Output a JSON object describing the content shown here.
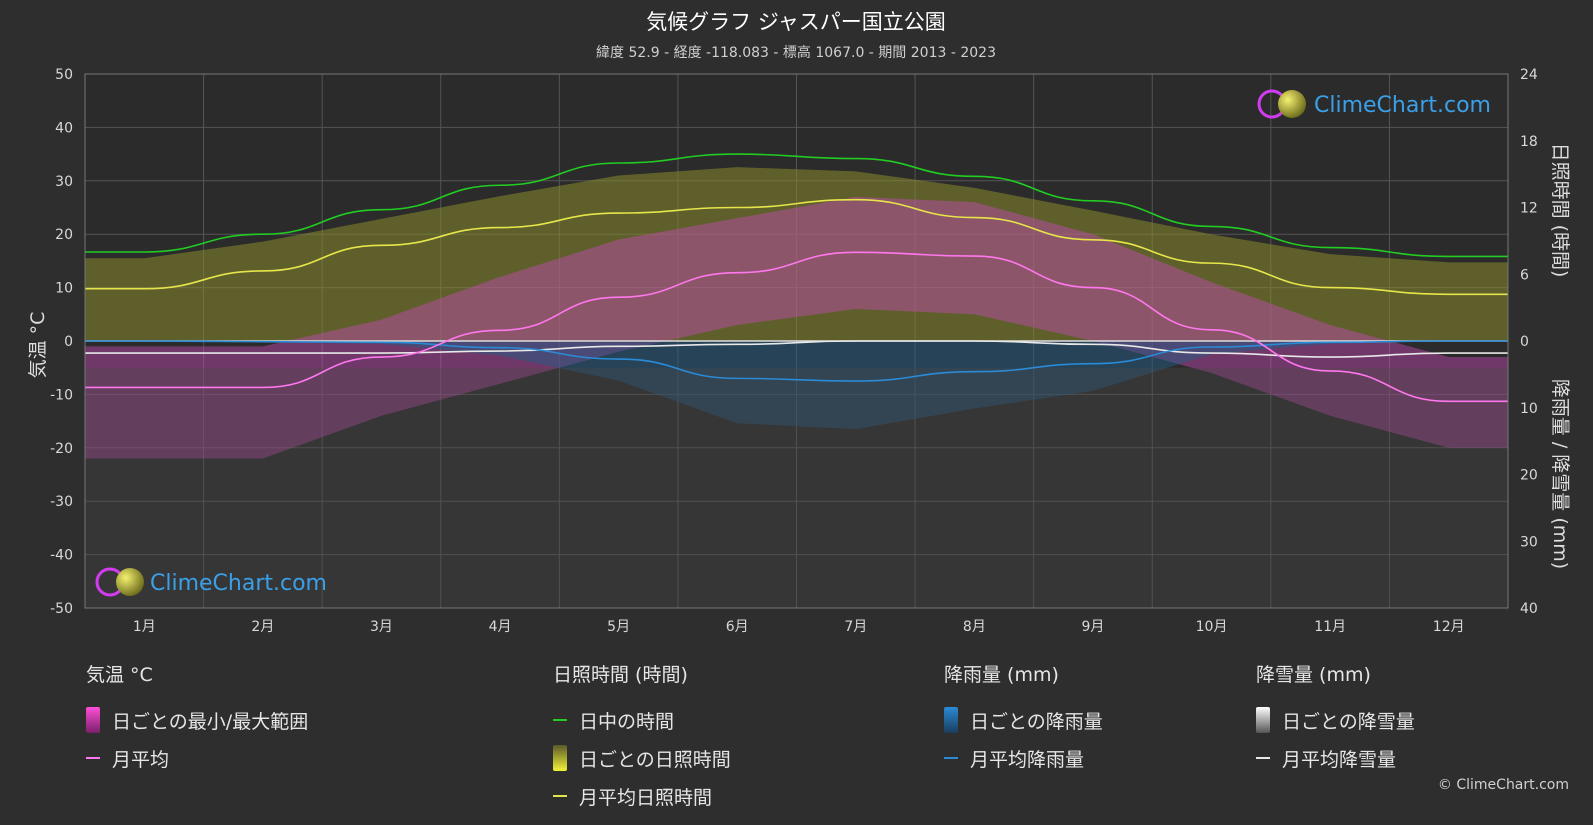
{
  "title": "気候グラフ ジャスパー国立公園",
  "subtitle": "緯度 52.9 - 経度 -118.083 - 標高 1067.0 - 期間 2013 - 2023",
  "watermark": "ClimeChart.com",
  "copyright": "© ClimeChart.com",
  "colors": {
    "background": "#2e2e2e",
    "daylight": "#22cc22",
    "sunshine_avg": "#e6e64a",
    "temp_avg": "#ff77ee",
    "rain_avg": "#2a8ad6",
    "snow_avg": "#e8e8e8",
    "watermark": "#3aa0e8"
  },
  "chart_data": {
    "type": "line",
    "months": [
      "1月",
      "2月",
      "3月",
      "4月",
      "5月",
      "6月",
      "7月",
      "8月",
      "9月",
      "10月",
      "11月",
      "12月"
    ],
    "left_axis": {
      "label": "気温 °C",
      "range": [
        -50,
        50
      ],
      "ticks": [
        50,
        40,
        30,
        20,
        10,
        0,
        -10,
        -20,
        -30,
        -40,
        -50
      ]
    },
    "right_axis_top": {
      "label": "日照時間 (時間)",
      "range": [
        0,
        24
      ],
      "ticks": [
        24,
        18,
        12,
        6,
        0
      ]
    },
    "right_axis_bottom": {
      "label": "降雨量 / 降雪量 (mm)",
      "range": [
        0,
        40
      ],
      "ticks": [
        0,
        10,
        20,
        30,
        40
      ]
    },
    "series": [
      {
        "name": "日中の時間",
        "unit": "hours",
        "values": [
          8.0,
          9.6,
          11.8,
          14.0,
          16.0,
          16.8,
          16.4,
          14.8,
          12.6,
          10.3,
          8.4,
          7.6
        ]
      },
      {
        "name": "月平均日照時間",
        "unit": "hours",
        "values": [
          4.7,
          6.3,
          8.6,
          10.2,
          11.5,
          12.0,
          12.7,
          11.1,
          9.1,
          7.0,
          4.8,
          4.2
        ]
      },
      {
        "name": "月平均",
        "unit": "°C",
        "values": [
          -8.7,
          -8.7,
          -3.0,
          2.0,
          8.2,
          12.8,
          16.6,
          15.9,
          10.0,
          2.1,
          -5.6,
          -11.3
        ]
      },
      {
        "name": "月平均降雨量",
        "unit": "mm",
        "values": [
          0.0,
          0.1,
          0.2,
          1.0,
          2.7,
          5.6,
          6.0,
          4.6,
          3.4,
          0.9,
          0.2,
          0.0
        ]
      },
      {
        "name": "月平均降雪量",
        "unit": "mm",
        "values": [
          1.8,
          1.8,
          1.8,
          1.5,
          0.8,
          0.5,
          0.0,
          0.0,
          0.5,
          1.8,
          2.4,
          1.8
        ]
      }
    ],
    "bands": {
      "temp_max": [
        -1,
        -1,
        4,
        12,
        19,
        23,
        27,
        26,
        20,
        11,
        3,
        -3
      ],
      "temp_min": [
        -22,
        -22,
        -14,
        -8,
        -2,
        3,
        6,
        5,
        0,
        -6,
        -14,
        -20
      ]
    },
    "grid": true
  },
  "legend": {
    "temp": {
      "header": "気温 °C",
      "items": [
        "日ごとの最小/最大範囲",
        "月平均"
      ]
    },
    "sun": {
      "header": "日照時間 (時間)",
      "items": [
        "日中の時間",
        "日ごとの日照時間",
        "月平均日照時間"
      ]
    },
    "rain": {
      "header": "降雨量 (mm)",
      "items": [
        "日ごとの降雨量",
        "月平均降雨量"
      ]
    },
    "snow": {
      "header": "降雪量 (mm)",
      "items": [
        "日ごとの降雪量",
        "月平均降雪量"
      ]
    }
  }
}
